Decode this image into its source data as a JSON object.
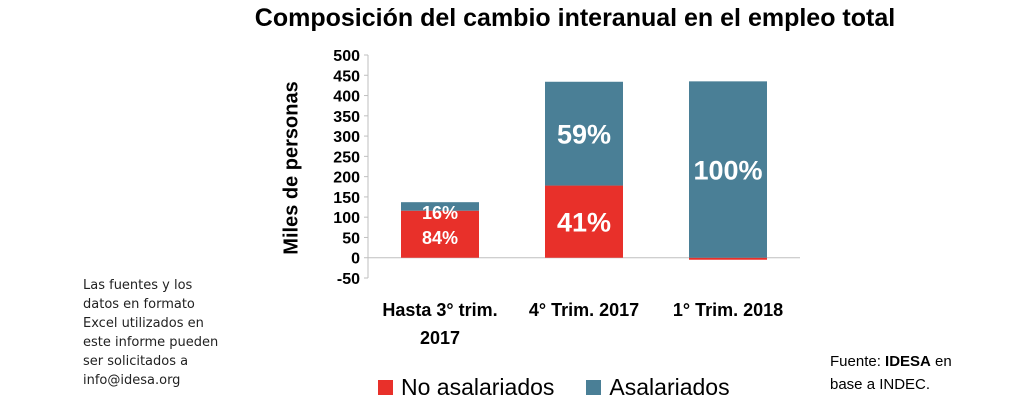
{
  "chart_data": {
    "type": "bar",
    "stacked": true,
    "title": "Composición del cambio interanual en el empleo total",
    "ylabel": "Miles de personas",
    "xlabel": "",
    "ylim": [
      -50,
      500
    ],
    "yticks": [
      500,
      450,
      400,
      350,
      300,
      250,
      200,
      150,
      100,
      50,
      0,
      -50
    ],
    "categories": [
      "Hasta 3° trim. 2017",
      "4° Trim. 2017",
      "1° Trim. 2018"
    ],
    "category_lines": [
      [
        "Hasta 3° trim.",
        "2017"
      ],
      [
        "4° Trim. 2017"
      ],
      [
        "1° Trim. 2018"
      ]
    ],
    "series": [
      {
        "name": "No asalariados",
        "color": "#e8302a",
        "values": [
          116,
          178,
          -5
        ]
      },
      {
        "name": "Asalariados",
        "color": "#4a7f96",
        "values": [
          21,
          256,
          435
        ]
      }
    ],
    "data_labels": [
      [
        "84%",
        "16%"
      ],
      [
        "41%",
        "59%"
      ],
      [
        "",
        "100%"
      ]
    ],
    "legend": {
      "position": "bottom",
      "items": [
        "No asalariados",
        "Asalariados"
      ]
    },
    "grid": false
  },
  "note": {
    "lines": [
      "Las fuentes y los",
      "datos en formato",
      "Excel utilizados en",
      "este informe pueden",
      "ser solicitados a",
      "info@idesa.org"
    ]
  },
  "source": {
    "prefix": "Fuente: ",
    "org": "IDESA",
    "suffix": " en",
    "line2": "base a INDEC."
  }
}
